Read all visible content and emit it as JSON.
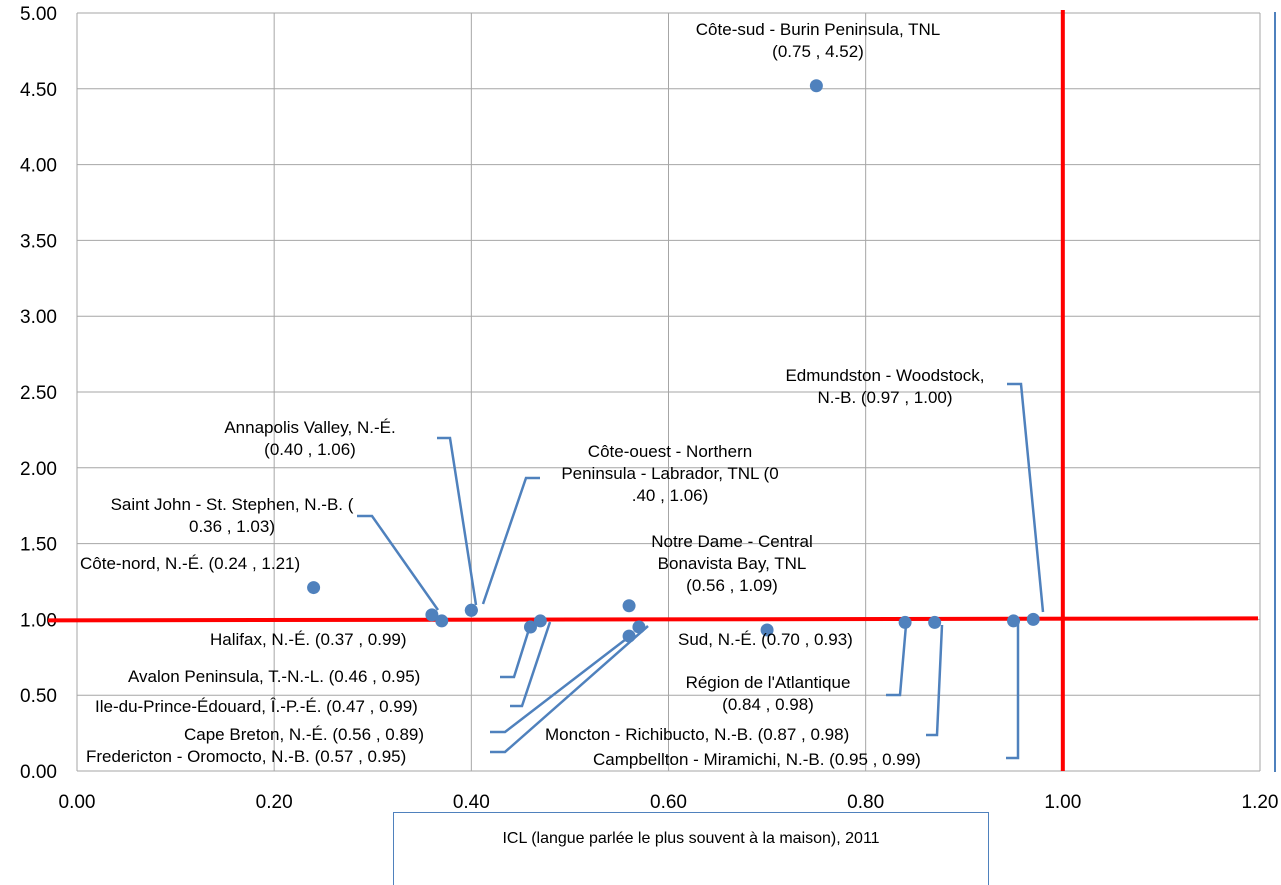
{
  "chart_data": {
    "type": "scatter",
    "title": "",
    "xlabel": "ICL (langue parlée le plus souvent à la maison), 2011",
    "ylabel": "",
    "xlim": [
      0,
      1.2
    ],
    "ylim": [
      0,
      5
    ],
    "x_ticks": [
      "0.00",
      "0.20",
      "0.40",
      "0.60",
      "0.80",
      "1.00",
      "1.20"
    ],
    "y_ticks": [
      "0.00",
      "0.50",
      "1.00",
      "1.50",
      "2.00",
      "2.50",
      "3.00",
      "3.50",
      "4.00",
      "4.50",
      "5.00"
    ],
    "grid": true,
    "legend": "none",
    "point_color": "#4f81bd",
    "reference_line_color": "#ff0000",
    "reference_lines": {
      "x": 1.0,
      "y": 1.0
    },
    "points": [
      {
        "label": "Côte-sud - Burin Peninsula, TNL (0.75 , 4.52)",
        "x": 0.75,
        "y": 4.52
      },
      {
        "label": "Edmundston - Woodstock, N.-B. (0.97 , 1.00)",
        "x": 0.97,
        "y": 1.0
      },
      {
        "label": "Annapolis Valley, N.-É. (0.40 , 1.06)",
        "x": 0.4,
        "y": 1.06
      },
      {
        "label": "Côte-ouest - Northern Peninsula - Labrador, TNL (0.40 , 1.06)",
        "x": 0.4,
        "y": 1.06
      },
      {
        "label": "Saint John - St. Stephen, N.-B. (0.36 , 1.03)",
        "x": 0.36,
        "y": 1.03
      },
      {
        "label": "Côte-nord, N.-É. (0.24 , 1.21)",
        "x": 0.24,
        "y": 1.21
      },
      {
        "label": "Notre Dame - Central Bonavista Bay, TNL (0.56 , 1.09)",
        "x": 0.56,
        "y": 1.09
      },
      {
        "label": "Halifax, N.-É. (0.37 , 0.99)",
        "x": 0.37,
        "y": 0.99
      },
      {
        "label": "Sud, N.-É. (0.70 , 0.93)",
        "x": 0.7,
        "y": 0.93
      },
      {
        "label": "Avalon Peninsula, T.-N.-L. (0.46 , 0.95)",
        "x": 0.46,
        "y": 0.95
      },
      {
        "label": "Région de l'Atlantique (0.84 , 0.98)",
        "x": 0.84,
        "y": 0.98
      },
      {
        "label": "Ile-du-Prince-Édouard, Î.-P.-É. (0.47 , 0.99)",
        "x": 0.47,
        "y": 0.99
      },
      {
        "label": "Cape Breton, N.-É. (0.56 , 0.89)",
        "x": 0.56,
        "y": 0.89
      },
      {
        "label": "Moncton - Richibucto, N.-B. (0.87 , 0.98)",
        "x": 0.87,
        "y": 0.98
      },
      {
        "label": "Fredericton - Oromocto, N.-B. (0.57 , 0.95)",
        "x": 0.57,
        "y": 0.95
      },
      {
        "label": "Campbellton - Miramichi, N.-B. (0.95 , 0.99)",
        "x": 0.95,
        "y": 0.99
      }
    ]
  }
}
